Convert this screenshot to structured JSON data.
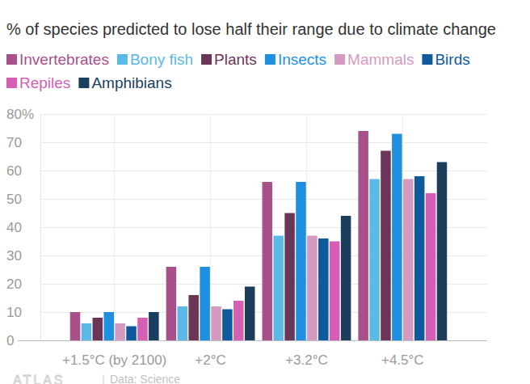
{
  "chart_data": {
    "type": "bar",
    "title": "% of species predicted to lose half their range due to climate change",
    "categories": [
      "+1.5°C (by 2100)",
      "+2°C",
      "+3.2°C",
      "+4.5°C"
    ],
    "series": [
      {
        "name": "Invertebrates",
        "color": "#a8508a",
        "values": [
          10,
          26,
          56,
          74
        ]
      },
      {
        "name": "Bony fish",
        "color": "#5cb8e6",
        "values": [
          6,
          12,
          37,
          57
        ]
      },
      {
        "name": "Plants",
        "color": "#6b3558",
        "values": [
          8,
          16,
          45,
          67
        ]
      },
      {
        "name": "Insects",
        "color": "#1f8fe0",
        "values": [
          10,
          26,
          56,
          73
        ]
      },
      {
        "name": "Mammals",
        "color": "#d39bc0",
        "values": [
          6,
          12,
          37,
          57
        ]
      },
      {
        "name": "Birds",
        "color": "#0e5a9c",
        "values": [
          5,
          11,
          36,
          58
        ]
      },
      {
        "name": "Repiles",
        "color": "#d45fb5",
        "values": [
          8,
          14,
          35,
          52
        ]
      },
      {
        "name": "Amphibians",
        "color": "#1a3e5c",
        "values": [
          10,
          19,
          44,
          63
        ]
      }
    ],
    "ylim": [
      0,
      80
    ],
    "yticks": [
      0,
      10,
      20,
      30,
      40,
      50,
      60,
      70,
      {
        "value": 80,
        "label": "80%"
      }
    ],
    "grid": true,
    "legend": "top-left",
    "logo": "ATLAS",
    "source": "Data: Science"
  }
}
